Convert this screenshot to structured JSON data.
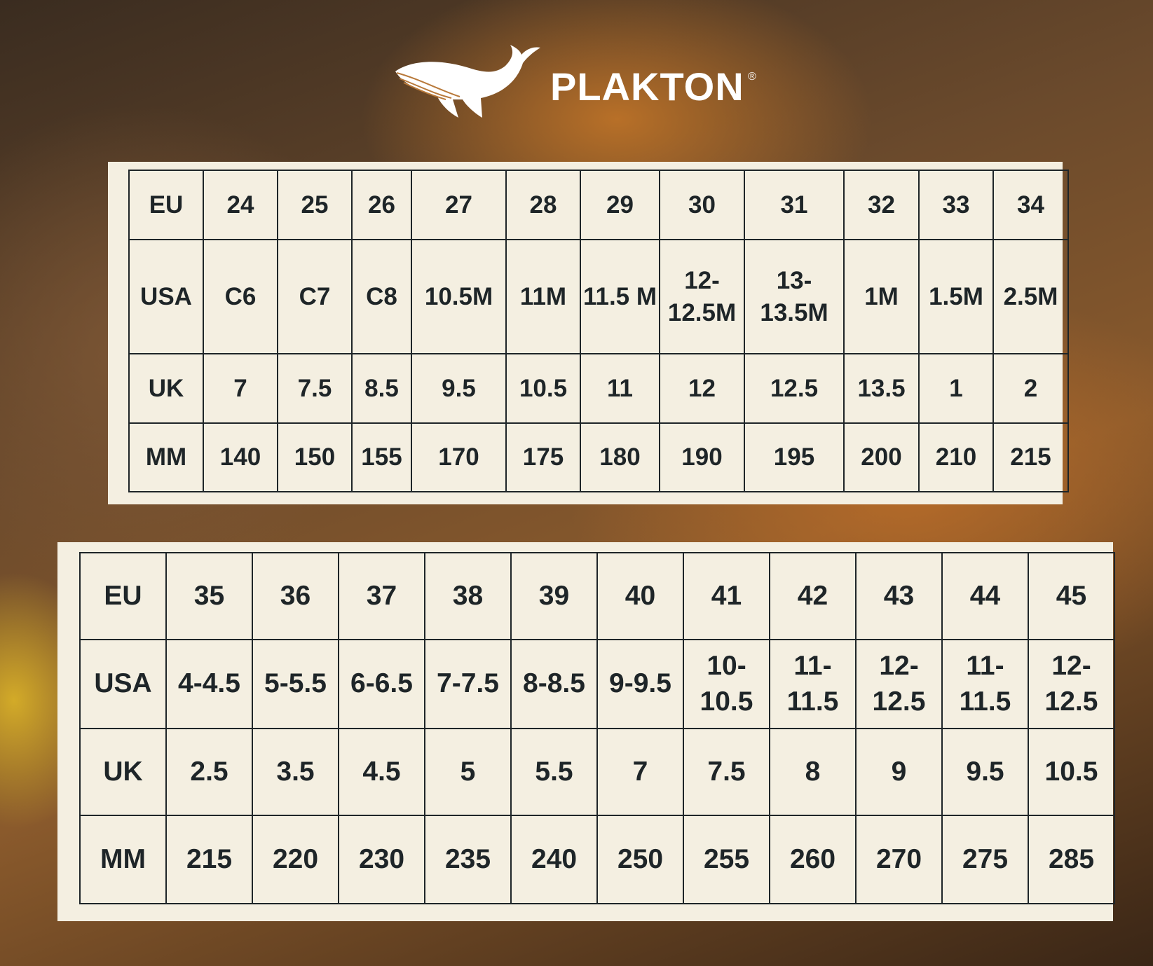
{
  "brand": {
    "name": "PLAKTON",
    "registered": "®"
  },
  "colors": {
    "panel": "#f4efe1",
    "text": "#1e2528",
    "logo": "#ffffff"
  },
  "tables": [
    {
      "rows": [
        {
          "label": "EU",
          "values": [
            "24",
            "25",
            "26",
            "27",
            "28",
            "29",
            "30",
            "31",
            "32",
            "33",
            "34"
          ]
        },
        {
          "label": "USA",
          "values": [
            "C6",
            "C7",
            "C8",
            "10.5M",
            "11M",
            "11.5 M",
            "12- 12.5M",
            "13- 13.5M",
            "1M",
            "1.5M",
            "2.5M"
          ]
        },
        {
          "label": "UK",
          "values": [
            "7",
            "7.5",
            "8.5",
            "9.5",
            "10.5",
            "11",
            "12",
            "12.5",
            "13.5",
            "1",
            "2"
          ]
        },
        {
          "label": "MM",
          "values": [
            "140",
            "150",
            "155",
            "170",
            "175",
            "180",
            "190",
            "195",
            "200",
            "210",
            "215"
          ]
        }
      ]
    },
    {
      "rows": [
        {
          "label": "EU",
          "values": [
            "35",
            "36",
            "37",
            "38",
            "39",
            "40",
            "41",
            "42",
            "43",
            "44",
            "45"
          ]
        },
        {
          "label": "USA",
          "values": [
            "4-4.5",
            "5-5.5",
            "6-6.5",
            "7-7.5",
            "8-8.5",
            "9-9.5",
            "10- 10.5",
            "11- 11.5",
            "12- 12.5",
            "11- 11.5",
            "12- 12.5"
          ]
        },
        {
          "label": "UK",
          "values": [
            "2.5",
            "3.5",
            "4.5",
            "5",
            "5.5",
            "7",
            "7.5",
            "8",
            "9",
            "9.5",
            "10.5"
          ]
        },
        {
          "label": "MM",
          "values": [
            "215",
            "220",
            "230",
            "235",
            "240",
            "250",
            "255",
            "260",
            "270",
            "275",
            "285"
          ]
        }
      ]
    }
  ]
}
